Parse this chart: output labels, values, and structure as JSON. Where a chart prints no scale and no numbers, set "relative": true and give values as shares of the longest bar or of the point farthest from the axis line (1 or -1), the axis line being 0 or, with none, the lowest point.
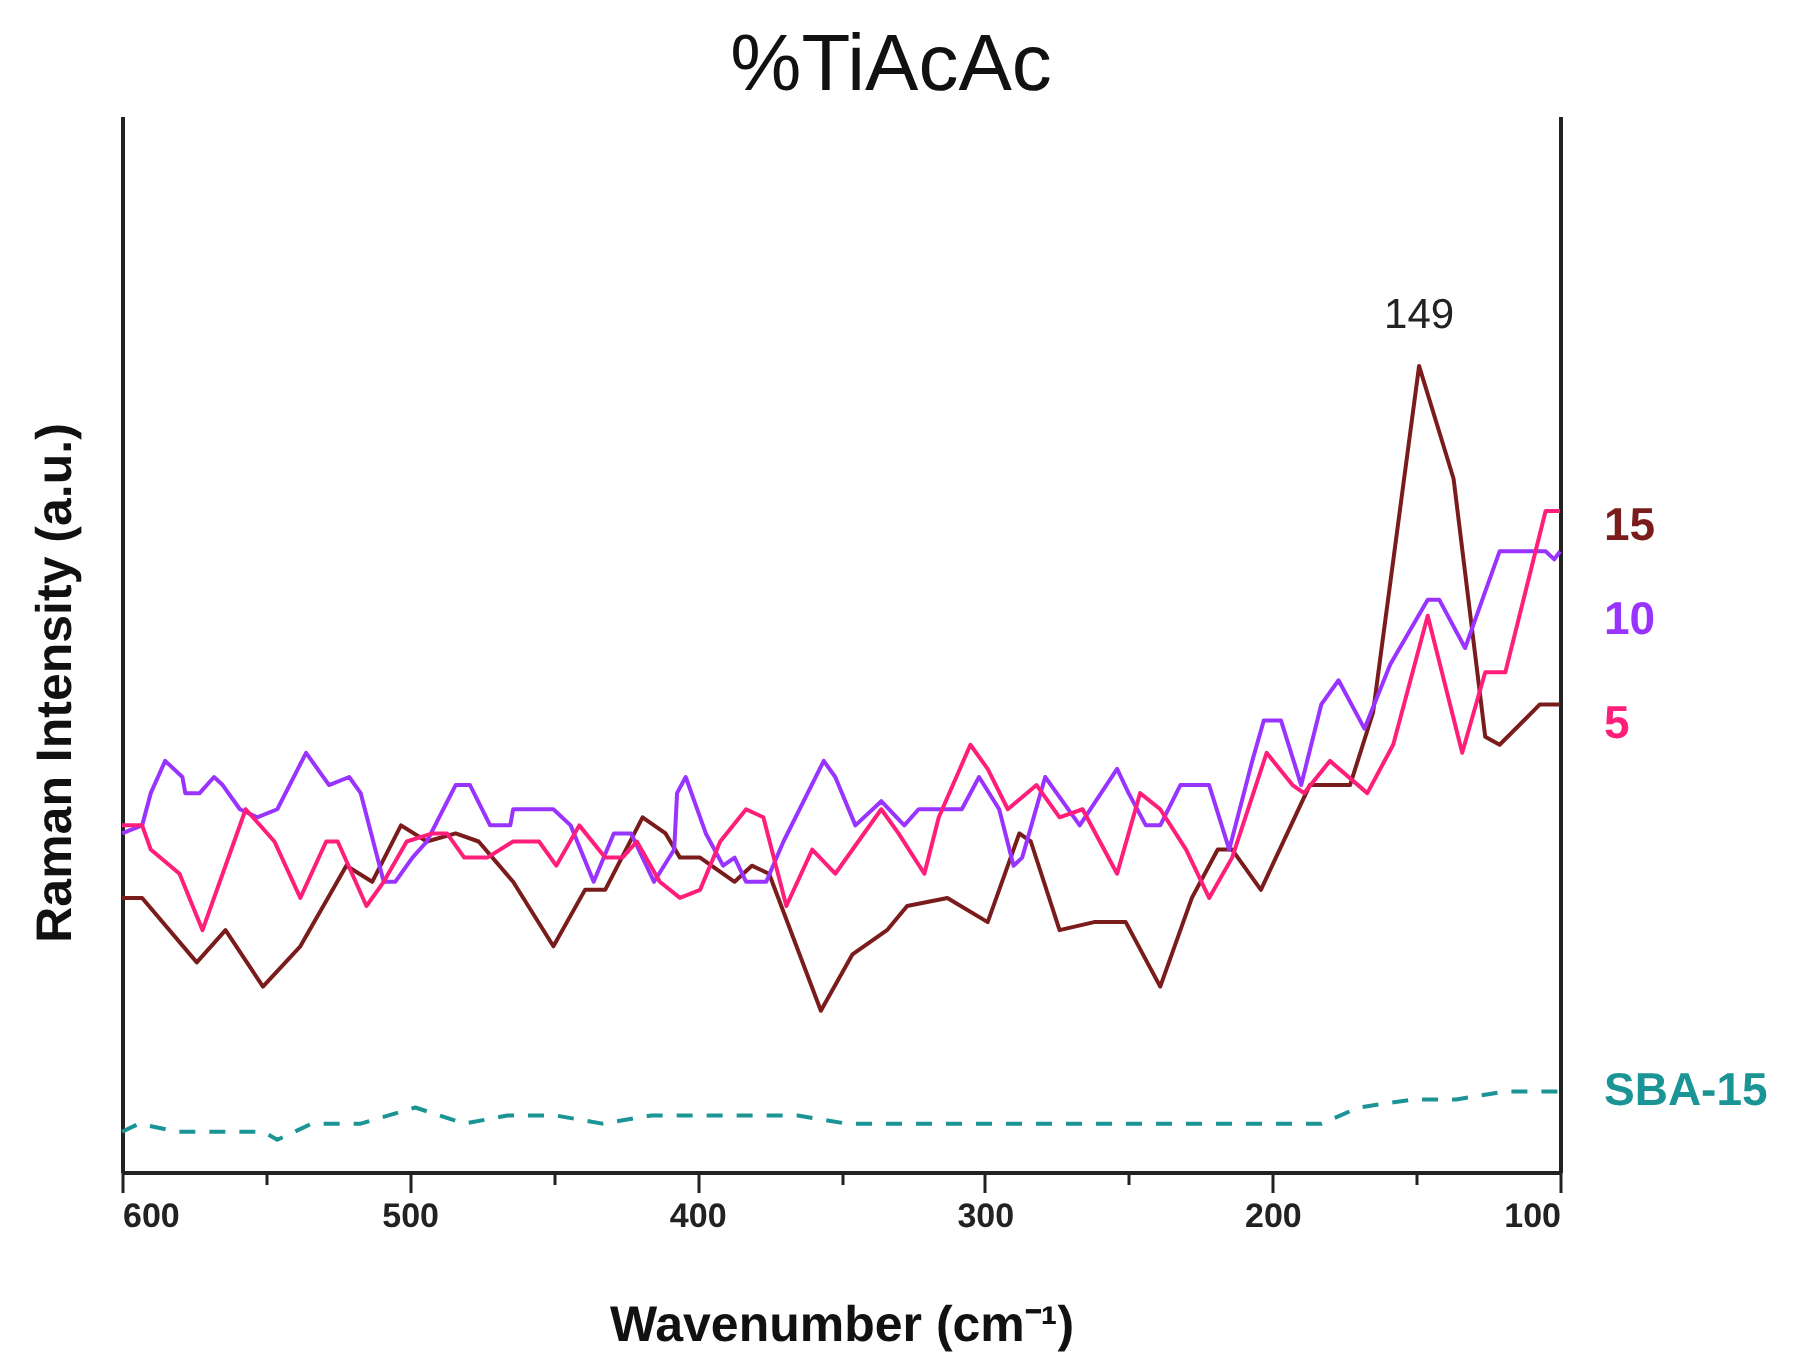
{
  "chart_data": {
    "type": "line",
    "title": "%TiAcAc",
    "xlabel": "Wavenumber (cm⁻¹)",
    "ylabel": "Raman Intensity (a.u.)",
    "relative": true,
    "xlim": [
      600,
      100
    ],
    "xticks": [
      600,
      {
        "value": 550,
        "label": null
      },
      500,
      {
        "value": 450,
        "label": null
      },
      400,
      {
        "value": 350,
        "label": null
      },
      300,
      {
        "value": 250,
        "label": null
      },
      200,
      {
        "value": 150,
        "label": null
      },
      100
    ],
    "annotations": [
      {
        "text": "149",
        "x": 149,
        "y": 1
      }
    ],
    "series": [
      {
        "name": "15",
        "color": "#7b1c1c",
        "x": [
          600,
          593,
          574,
          564,
          551,
          538,
          522,
          513,
          503,
          494,
          484,
          476,
          464,
          450,
          439,
          432,
          419,
          411,
          406,
          399,
          387,
          381,
          375,
          357,
          346,
          334,
          327,
          313,
          299,
          288,
          284,
          274,
          262,
          251,
          239,
          228,
          219,
          214,
          204,
          187,
          173,
          165,
          149,
          137,
          126,
          121,
          107,
          100
        ],
        "values": [
          0.34,
          0.34,
          0.26,
          0.3,
          0.23,
          0.28,
          0.38,
          0.36,
          0.43,
          0.41,
          0.42,
          0.41,
          0.36,
          0.28,
          0.35,
          0.35,
          0.44,
          0.42,
          0.39,
          0.39,
          0.36,
          0.38,
          0.37,
          0.2,
          0.27,
          0.3,
          0.33,
          0.34,
          0.31,
          0.42,
          0.41,
          0.3,
          0.31,
          0.31,
          0.23,
          0.34,
          0.4,
          0.4,
          0.35,
          0.48,
          0.48,
          0.57,
          1.0,
          0.86,
          0.54,
          0.53,
          0.58,
          0.58
        ]
      },
      {
        "name": "10",
        "color": "#9933ff",
        "x": [
          600,
          593,
          590,
          585,
          579,
          578,
          573,
          568,
          565,
          559,
          553,
          546,
          536,
          528,
          521,
          517,
          509,
          505,
          499,
          494,
          484,
          479,
          472,
          465,
          464,
          450,
          444,
          436,
          429,
          423,
          415,
          408,
          407,
          404,
          397,
          391,
          387,
          383,
          376,
          370,
          356,
          352,
          345,
          336,
          328,
          323,
          308,
          302,
          295,
          290,
          287,
          279,
          273,
          267,
          254,
          250,
          244,
          239,
          232,
          222,
          215,
          207,
          203,
          197,
          190,
          183,
          177,
          168,
          159,
          146,
          142,
          133,
          123,
          121,
          105,
          102,
          100
        ],
        "values": [
          0.42,
          0.43,
          0.47,
          0.51,
          0.49,
          0.47,
          0.47,
          0.49,
          0.48,
          0.45,
          0.44,
          0.45,
          0.52,
          0.48,
          0.49,
          0.47,
          0.36,
          0.36,
          0.39,
          0.41,
          0.48,
          0.48,
          0.43,
          0.43,
          0.45,
          0.45,
          0.43,
          0.36,
          0.42,
          0.42,
          0.36,
          0.4,
          0.47,
          0.49,
          0.42,
          0.38,
          0.39,
          0.36,
          0.36,
          0.41,
          0.51,
          0.49,
          0.43,
          0.46,
          0.43,
          0.45,
          0.45,
          0.49,
          0.45,
          0.38,
          0.39,
          0.49,
          0.46,
          0.43,
          0.5,
          0.47,
          0.43,
          0.43,
          0.48,
          0.48,
          0.4,
          0.51,
          0.56,
          0.56,
          0.48,
          0.58,
          0.61,
          0.55,
          0.63,
          0.71,
          0.71,
          0.65,
          0.75,
          0.77,
          0.77,
          0.76,
          0.77
        ]
      },
      {
        "name": "5",
        "color": "#ff1f7a",
        "x": [
          600,
          593,
          590,
          580,
          572,
          565,
          557,
          547,
          538,
          529,
          525,
          515,
          509,
          501,
          492,
          487,
          481,
          473,
          464,
          455,
          449,
          441,
          432,
          426,
          421,
          413,
          406,
          399,
          392,
          383,
          377,
          369,
          360,
          352,
          336,
          330,
          321,
          316,
          305,
          299,
          292,
          282,
          274,
          266,
          254,
          246,
          239,
          230,
          222,
          214,
          202,
          193,
          189,
          180,
          167,
          158,
          146,
          134,
          126,
          119,
          105,
          100
        ],
        "values": [
          0.43,
          0.43,
          0.4,
          0.37,
          0.3,
          0.37,
          0.45,
          0.41,
          0.34,
          0.41,
          0.41,
          0.33,
          0.36,
          0.41,
          0.42,
          0.42,
          0.39,
          0.39,
          0.41,
          0.41,
          0.38,
          0.43,
          0.39,
          0.39,
          0.41,
          0.36,
          0.34,
          0.35,
          0.41,
          0.45,
          0.44,
          0.33,
          0.4,
          0.37,
          0.45,
          0.42,
          0.37,
          0.44,
          0.53,
          0.5,
          0.45,
          0.48,
          0.44,
          0.45,
          0.37,
          0.47,
          0.45,
          0.4,
          0.34,
          0.39,
          0.52,
          0.48,
          0.47,
          0.51,
          0.47,
          0.53,
          0.69,
          0.52,
          0.62,
          0.62,
          0.82,
          0.82
        ]
      },
      {
        "name": "SBA-15",
        "color": "#1a9494",
        "line_style": "dashed",
        "x": [
          600,
          594,
          581,
          564,
          551,
          546,
          534,
          517,
          498,
          481,
          466,
          449,
          433,
          416,
          399,
          382,
          365,
          348,
          331,
          316,
          301,
          284,
          267,
          251,
          234,
          217,
          200,
          183,
          170,
          151,
          136,
          119,
          102,
          100
        ],
        "values": [
          0.05,
          0.06,
          0.05,
          0.05,
          0.05,
          0.04,
          0.06,
          0.06,
          0.08,
          0.06,
          0.07,
          0.07,
          0.06,
          0.07,
          0.07,
          0.07,
          0.07,
          0.06,
          0.06,
          0.06,
          0.06,
          0.06,
          0.06,
          0.06,
          0.06,
          0.06,
          0.06,
          0.06,
          0.08,
          0.09,
          0.09,
          0.1,
          0.1,
          0.1
        ]
      }
    ]
  }
}
